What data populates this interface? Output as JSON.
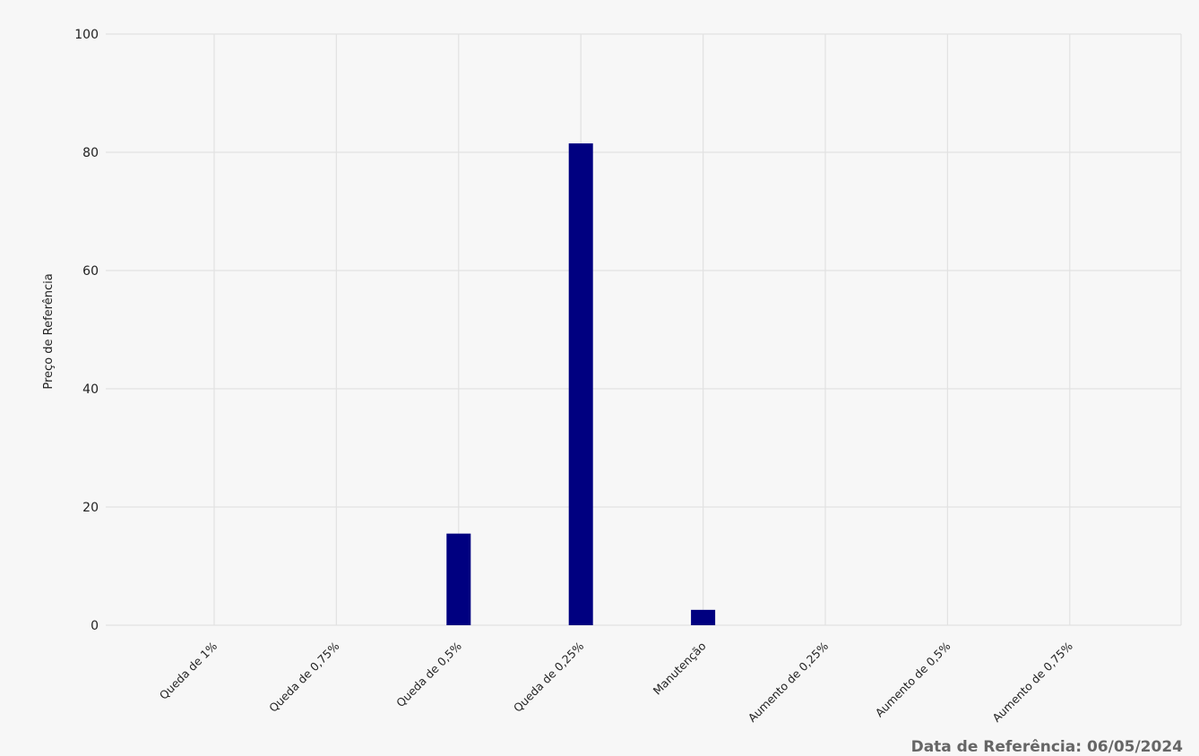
{
  "chart_data": {
    "type": "bar",
    "y_label": "Preço de Referência",
    "footer": "Data de Referência: 06/05/2024",
    "categories": [
      "Queda de 1%",
      "Queda de 0,75%",
      "Queda de 0,5%",
      "Queda de 0,25%",
      "Manutenção",
      "Aumento de 0,25%",
      "Aumento de 0,5%",
      "Aumento de 0,75%"
    ],
    "values": [
      0,
      0,
      15.5,
      81.5,
      2.6,
      0,
      0,
      0
    ],
    "color": "#000080",
    "ylim": [
      0,
      100
    ],
    "yticks": [
      0,
      20,
      40,
      60,
      80,
      100
    ],
    "grid": true
  }
}
